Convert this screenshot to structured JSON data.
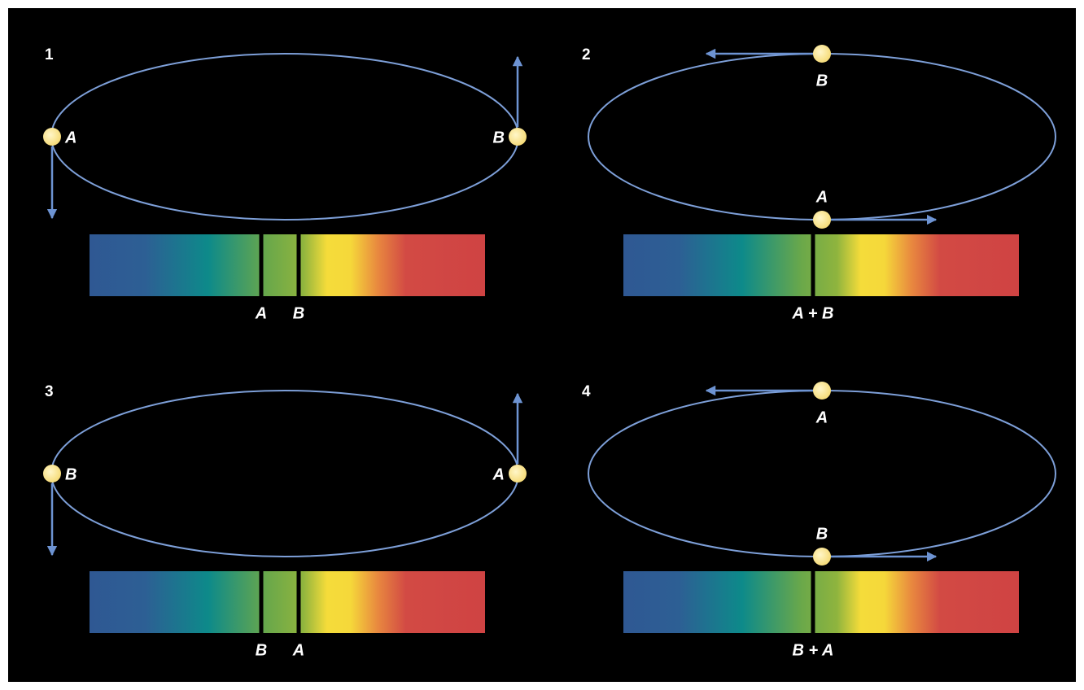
{
  "panels": [
    {
      "number": "1",
      "stars": [
        "A",
        "B"
      ],
      "lines": [
        "A",
        "B"
      ]
    },
    {
      "number": "2",
      "stars": [
        "B",
        "A"
      ],
      "lines": [
        "A + B"
      ]
    },
    {
      "number": "3",
      "stars": [
        "B",
        "A"
      ],
      "lines": [
        "B",
        "A"
      ]
    },
    {
      "number": "4",
      "stars": [
        "A",
        "B"
      ],
      "lines": [
        "B + A"
      ]
    }
  ]
}
